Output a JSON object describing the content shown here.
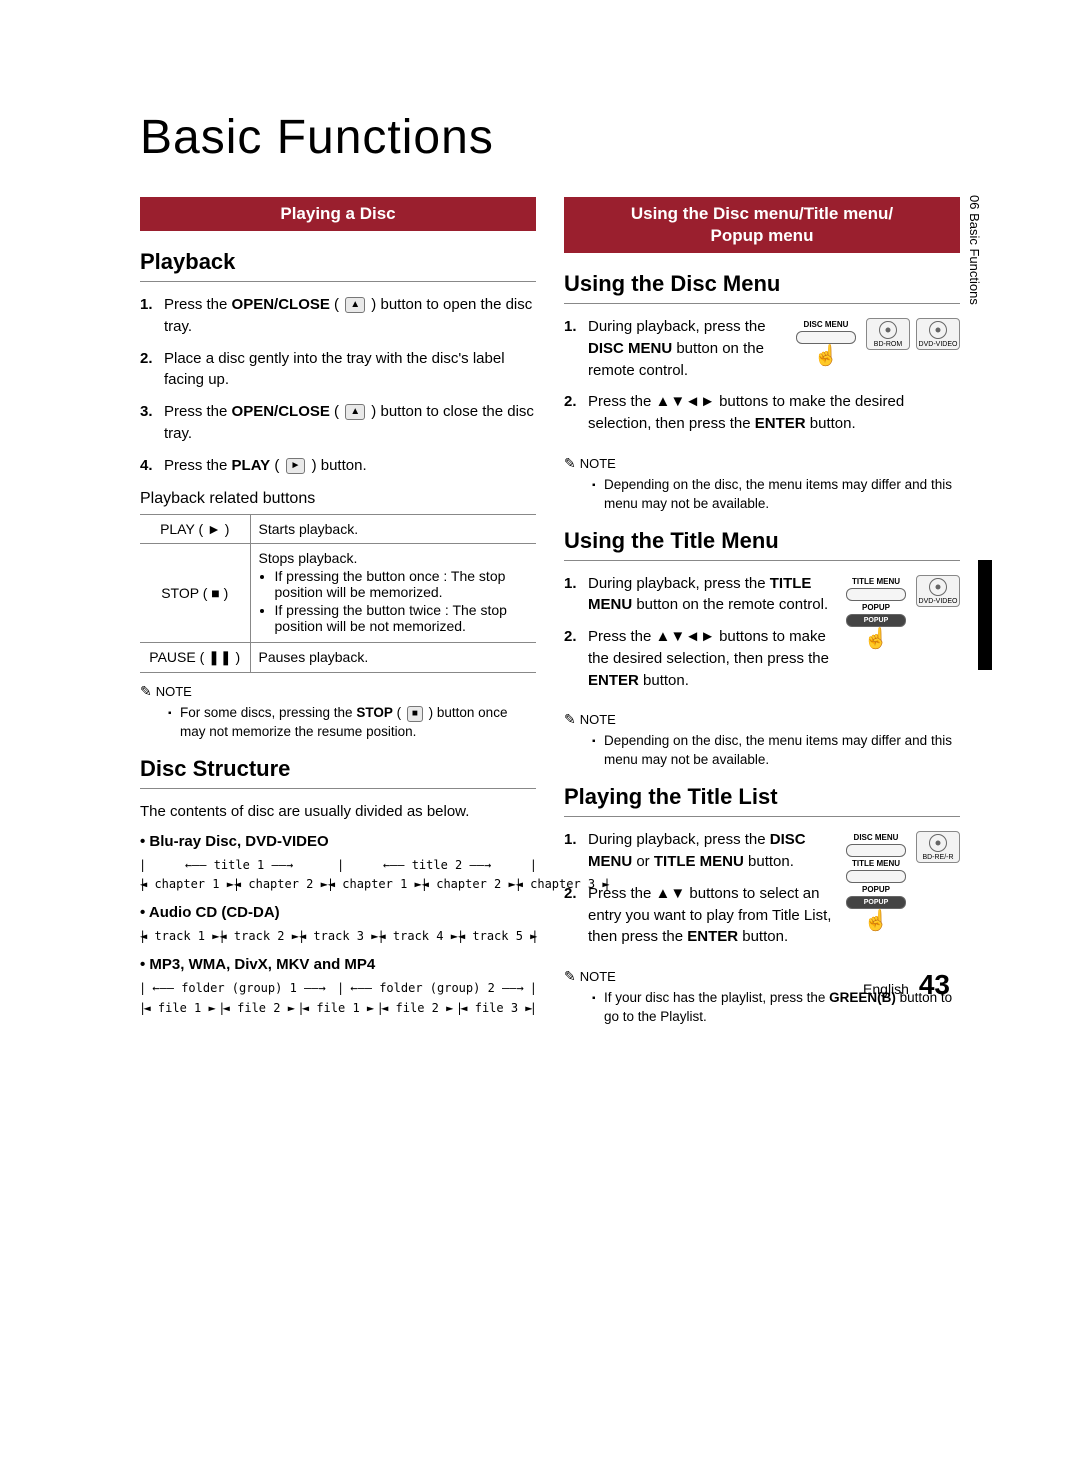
{
  "colors": {
    "banner_bg": "#9a1f2e",
    "banner_fg": "#ffffff",
    "rule": "#888888",
    "text": "#000000",
    "side_black": "#000000"
  },
  "main_title": "Basic Functions",
  "side_tab": "06  Basic Functions",
  "footer": {
    "lang": "English",
    "page": "43"
  },
  "left": {
    "banner": "Playing a Disc",
    "playback": {
      "title": "Playback",
      "steps_html": [
        "Press the <b>OPEN/CLOSE</b> ( <span class='btn-icon'>▲</span> ) button to open the disc tray.",
        "Place a disc gently into the tray with the disc's label facing up.",
        "Press the <b>OPEN/CLOSE</b> ( <span class='btn-icon'>▲</span> ) button to close the disc tray.",
        "Press the <b>PLAY</b> ( <span class='btn-icon'>►</span> ) button."
      ],
      "related_title": "Playback related buttons",
      "table": [
        {
          "label": "PLAY ( ► )",
          "desc_html": "Starts playback."
        },
        {
          "label": "STOP ( ■ )",
          "desc_html": "Stops playback.<ul class='tbl-ul'><li>If pressing the button once : The stop position will be memorized.</li><li>If pressing the button twice : The stop position will be not memorized.</li></ul>"
        },
        {
          "label": "PAUSE ( ❚❚ )",
          "desc_html": "Pauses playback."
        }
      ],
      "note_label": "NOTE",
      "note_items_html": [
        "For some discs, pressing the <b>STOP</b> ( <span class='btn-icon'>■</span> ) button once may not memorize the resume position."
      ]
    },
    "disc_structure": {
      "title": "Disc Structure",
      "intro": "The contents of disc are usually divided as below.",
      "groups": [
        {
          "heading": "• Blu-ray Disc, DVD-VIDEO",
          "row1": [
            {
              "text": "title 1",
              "larrow": "←",
              "rarrow": "→"
            },
            {
              "text": "title 2",
              "larrow": "←",
              "rarrow": "→"
            }
          ],
          "row2": [
            "chapter 1",
            "chapter 2",
            "chapter 1",
            "chapter 2",
            "chapter 3"
          ]
        },
        {
          "heading": "• Audio CD (CD-DA)",
          "row2": [
            "track 1",
            "track 2",
            "track 3",
            "track 4",
            "track 5"
          ]
        },
        {
          "heading": "• MP3, WMA, DivX, MKV and MP4",
          "row1": [
            {
              "text": "folder (group) 1",
              "larrow": "←",
              "rarrow": "→"
            },
            {
              "text": "folder (group) 2",
              "larrow": "←",
              "rarrow": "→"
            }
          ],
          "row2": [
            "file 1",
            "file 2",
            "file 1",
            "file 2",
            "file 3"
          ]
        }
      ]
    }
  },
  "right": {
    "banner": "Using the Disc menu/Title menu/\nPopup menu",
    "disc_menu": {
      "title": "Using the Disc Menu",
      "badges": [
        "BD-ROM",
        "DVD-VIDEO"
      ],
      "remote_label": "DISC MENU",
      "steps_html": [
        "During playback, press the <b>DISC MENU</b> button on the remote control.",
        "Press the ▲▼◄► buttons to make the desired selection, then press the <b>ENTER</b> button."
      ],
      "note_label": "NOTE",
      "note_items": [
        "Depending on the disc, the menu items may differ and this menu may not be available."
      ]
    },
    "title_menu": {
      "title": "Using the Title Menu",
      "badges": [
        "DVD-VIDEO"
      ],
      "remote_labels": [
        "TITLE MENU",
        "POPUP"
      ],
      "steps_html": [
        "During playback, press the <b>TITLE MENU</b> button on the remote control.",
        "Press the ▲▼◄► buttons to make the desired selection, then press the <b>ENTER</b> button."
      ],
      "note_label": "NOTE",
      "note_items": [
        "Depending on the disc, the menu items may differ and this menu may not be available."
      ]
    },
    "title_list": {
      "title": "Playing the Title List",
      "badges": [
        "BD-RE/-R"
      ],
      "remote_labels": [
        "DISC MENU",
        "TITLE MENU",
        "POPUP"
      ],
      "steps_html": [
        "During playback, press the <b>DISC MENU</b> or <b>TITLE MENU</b> button.",
        "Press the ▲▼ buttons to select an entry you want to play from Title List, then press the <b>ENTER</b> button."
      ],
      "note_label": "NOTE",
      "note_items_html": [
        "If your disc has the playlist, press the <b>GREEN(B)</b> button to go to the Playlist."
      ]
    }
  }
}
